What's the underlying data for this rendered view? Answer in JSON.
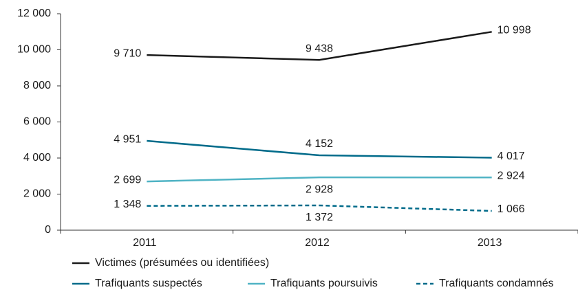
{
  "chart_data": {
    "type": "line",
    "categories": [
      "2011",
      "2012",
      "2013"
    ],
    "series": [
      {
        "name": "Victimes (présumées ou identifiées)",
        "color": "#1a1a1a",
        "dashed": false,
        "values": [
          9710,
          9438,
          10998
        ],
        "value_labels": [
          "9 710",
          "9 438",
          "10 998"
        ]
      },
      {
        "name": "Trafiquants suspectés",
        "color": "#006b8a",
        "dashed": false,
        "values": [
          4951,
          4152,
          4017
        ],
        "value_labels": [
          "4 951",
          "4 152",
          "4 017"
        ]
      },
      {
        "name": "Trafiquants poursuivis",
        "color": "#4fb3c4",
        "dashed": false,
        "values": [
          2699,
          2928,
          2924
        ],
        "value_labels": [
          "2 699",
          "2 928",
          "2 924"
        ]
      },
      {
        "name": "Trafiquants condamnés",
        "color": "#006b8a",
        "dashed": true,
        "values": [
          1348,
          1372,
          1066
        ],
        "value_labels": [
          "1 348",
          "1 372",
          "1 066"
        ]
      }
    ],
    "ylim": [
      0,
      12000
    ],
    "yticks": [
      0,
      {
        "value": 2000,
        "label": "2 000"
      },
      {
        "value": 4000,
        "label": "4 000"
      },
      {
        "value": 6000,
        "label": "6 000"
      },
      {
        "value": 8000,
        "label": "8 000"
      },
      {
        "value": 10000,
        "label": "10 000"
      },
      {
        "value": 12000,
        "label": "12 000"
      }
    ],
    "grid": false
  }
}
